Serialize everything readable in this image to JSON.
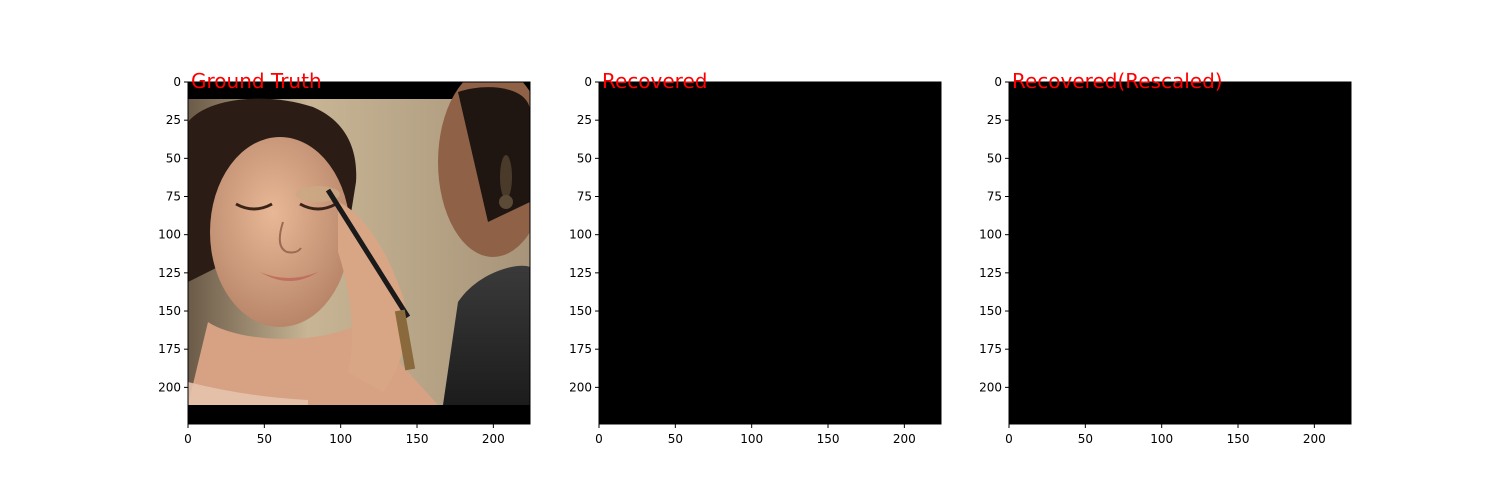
{
  "figure": {
    "background": "#ffffff",
    "title_color": "#ff0000"
  },
  "chart_data": [
    {
      "type": "image",
      "title": "Ground Truth",
      "content": "photograph: woman with eyes closed having eye makeup applied with a brush by another person on the right; black letterbox bars at top and bottom",
      "xlim": [
        0,
        224
      ],
      "ylim": [
        224,
        0
      ],
      "x_ticks": [
        0,
        50,
        100,
        150,
        200
      ],
      "y_ticks": [
        0,
        25,
        50,
        75,
        100,
        125,
        150,
        175,
        200
      ],
      "letterbox_rows": [
        [
          0,
          11
        ],
        [
          211,
          224
        ]
      ]
    },
    {
      "type": "image",
      "title": "Recovered",
      "content": "solid black image",
      "fill": "#000000",
      "xlim": [
        0,
        224
      ],
      "ylim": [
        224,
        0
      ],
      "x_ticks": [
        0,
        50,
        100,
        150,
        200
      ],
      "y_ticks": [
        0,
        25,
        50,
        75,
        100,
        125,
        150,
        175,
        200
      ]
    },
    {
      "type": "image",
      "title": "Recovered(Rescaled)",
      "content": "solid black image",
      "fill": "#000000",
      "xlim": [
        0,
        224
      ],
      "ylim": [
        224,
        0
      ],
      "x_ticks": [
        0,
        50,
        100,
        150,
        200
      ],
      "y_ticks": [
        0,
        25,
        50,
        75,
        100,
        125,
        150,
        175,
        200
      ]
    }
  ]
}
